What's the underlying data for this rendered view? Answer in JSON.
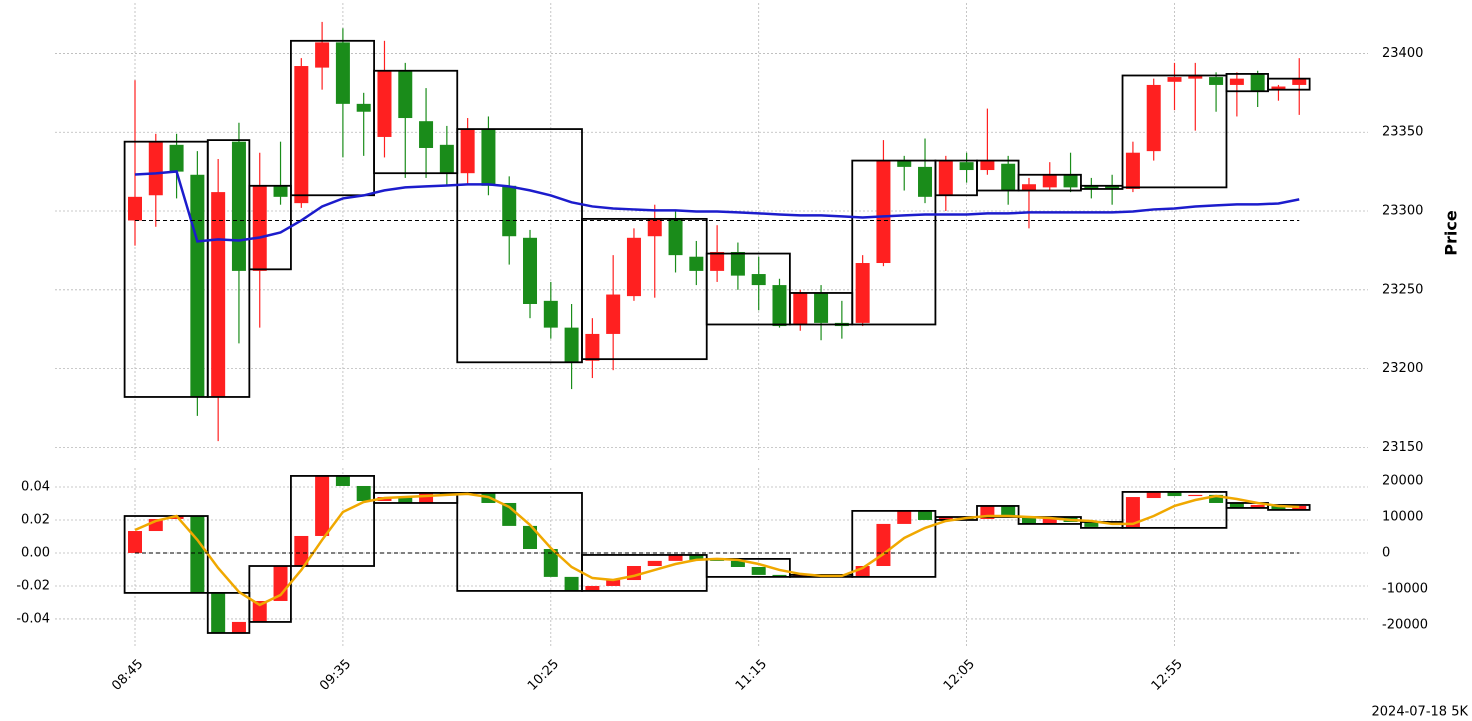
{
  "chart_data": [
    {
      "type": "candlestick",
      "y_label": "Price",
      "annotation": "2024-07-18 5K",
      "open": [
        23294,
        23310,
        23342,
        23323,
        23182,
        23344,
        23262,
        23316,
        23305,
        23391,
        23407,
        23368,
        23347,
        23389,
        23357,
        23342,
        23324,
        23352,
        23316,
        23283,
        23243,
        23226,
        23205,
        23222,
        23246,
        23284,
        23295,
        23271,
        23262,
        23274,
        23260,
        23253,
        23228,
        23248,
        23229,
        23229,
        23267,
        23332,
        23328,
        23310,
        23331,
        23326,
        23330,
        23313,
        23315,
        23323,
        23316,
        23316,
        23314,
        23338,
        23382,
        23384,
        23385,
        23380,
        23387,
        23377,
        23380
      ],
      "high": [
        23383,
        23349,
        23349,
        23338,
        23333,
        23356,
        23337,
        23344,
        23397,
        23420,
        23416,
        23375,
        23408,
        23394,
        23378,
        23354,
        23359,
        23360,
        23322,
        23288,
        23255,
        23241,
        23232,
        23272,
        23289,
        23304,
        23300,
        23281,
        23291,
        23280,
        23271,
        23257,
        23250,
        23253,
        23243,
        23272,
        23345,
        23335,
        23346,
        23335,
        23337,
        23365,
        23335,
        23321,
        23331,
        23337,
        23321,
        23323,
        23344,
        23384,
        23394,
        23394,
        23388,
        23388,
        23389,
        23380,
        23397
      ],
      "low": [
        23278,
        23290,
        23308,
        23170,
        23154,
        23216,
        23226,
        23304,
        23302,
        23377,
        23334,
        23335,
        23334,
        23321,
        23321,
        23316,
        23317,
        23310,
        23266,
        23232,
        23219,
        23187,
        23194,
        23199,
        23243,
        23245,
        23261,
        23253,
        23255,
        23250,
        23237,
        23226,
        23224,
        23218,
        23219,
        23227,
        23265,
        23313,
        23305,
        23300,
        23318,
        23323,
        23304,
        23289,
        23313,
        23312,
        23308,
        23304,
        23312,
        23332,
        23364,
        23351,
        23363,
        23360,
        23366,
        23370,
        23361
      ],
      "close": [
        23309,
        23344,
        23325,
        23182,
        23312,
        23262,
        23316,
        23309,
        23392,
        23407,
        23368,
        23363,
        23389,
        23359,
        23340,
        23324,
        23352,
        23316,
        23284,
        23241,
        23226,
        23204,
        23222,
        23247,
        23283,
        23295,
        23272,
        23262,
        23274,
        23259,
        23253,
        23227,
        23248,
        23229,
        23227,
        23267,
        23332,
        23328,
        23309,
        23332,
        23326,
        23332,
        23313,
        23317,
        23323,
        23315,
        23314,
        23314,
        23337,
        23380,
        23385,
        23386,
        23380,
        23384,
        23376,
        23379,
        23384
      ],
      "up_color": "#ff2020",
      "down_color": "#1a8c1a",
      "boxes": {
        "color": "#000000",
        "bars": [
          4,
          2,
          2,
          4,
          4,
          6,
          6,
          4,
          3,
          4,
          2,
          2,
          3,
          2,
          5,
          2,
          2
        ],
        "high": [
          23344,
          23345,
          23316,
          23408,
          23389,
          23352,
          23295,
          23273,
          23248,
          23332,
          23332,
          23332,
          23323,
          23316,
          23386,
          23387,
          23384
        ],
        "low": [
          23182,
          23182,
          23263,
          23310,
          23324,
          23204,
          23206,
          23228,
          23228,
          23228,
          23310,
          23313,
          23313,
          23314,
          23315,
          23376,
          23377
        ]
      },
      "lines": [
        {
          "color": "#1c1ccc",
          "values": [
            23323.2,
            23323.9,
            23325.1,
            23280.7,
            23282.0,
            23281.3,
            23283.2,
            23286.4,
            23294.0,
            23302.9,
            23308.0,
            23309.9,
            23313.1,
            23315.0,
            23315.6,
            23316.2,
            23316.9,
            23316.9,
            23315.6,
            23313.1,
            23309.9,
            23305.5,
            23302.9,
            23301.6,
            23301.0,
            23300.4,
            23300.4,
            23299.7,
            23299.7,
            23299.1,
            23298.5,
            23297.8,
            23297.2,
            23297.2,
            23296.6,
            23295.9,
            23296.6,
            23297.2,
            23297.8,
            23297.8,
            23297.8,
            23298.5,
            23298.5,
            23299.1,
            23299.1,
            23299.1,
            23299.1,
            23299.1,
            23299.7,
            23301.0,
            23301.6,
            23302.9,
            23303.6,
            23304.2,
            23304.2,
            23304.8,
            23307.4
          ]
        }
      ],
      "reference_line": 23294,
      "ylim": [
        23142,
        23432
      ],
      "yticks": [
        23150,
        23200,
        23250,
        23300,
        23350,
        23400
      ],
      "grid": true
    },
    {
      "type": "candlestick",
      "categories": [
        "08:45",
        null,
        null,
        null,
        null,
        null,
        null,
        null,
        null,
        null,
        "09:35",
        null,
        null,
        null,
        null,
        null,
        null,
        null,
        null,
        null,
        "10:25",
        null,
        null,
        null,
        null,
        null,
        null,
        null,
        null,
        null,
        "11:15",
        null,
        null,
        null,
        null,
        null,
        null,
        null,
        null,
        null,
        "12:05",
        null,
        null,
        null,
        null,
        null,
        null,
        null,
        null,
        null,
        "12:55",
        null,
        null,
        null,
        null,
        null,
        null
      ],
      "open": [
        0,
        0.0133,
        0.0206,
        0.0224,
        -0.0242,
        -0.0485,
        -0.0418,
        -0.0291,
        -0.0079,
        0.0103,
        0.0467,
        0.0406,
        0.0315,
        0.0339,
        0.0303,
        0.0364,
        0.0352,
        0.0364,
        0.0303,
        0.0164,
        0.0024,
        -0.0145,
        -0.023,
        -0.02,
        -0.0164,
        -0.0079,
        -0.0048,
        -0.0012,
        -0.0042,
        -0.0048,
        -0.0085,
        -0.0133,
        -0.0145,
        -0.0133,
        -0.014,
        -0.0145,
        -0.0079,
        0.0176,
        0.0255,
        0.02,
        0.0218,
        0.0206,
        0.0285,
        0.0218,
        0.0176,
        0.0218,
        0.0188,
        0.0158,
        0.0152,
        0.0333,
        0.037,
        0.0345,
        0.0352,
        0.0303,
        0.0273,
        0.0291,
        0.0261
      ],
      "close": [
        0.0133,
        0.0206,
        0.0224,
        -0.0242,
        -0.0485,
        -0.0418,
        -0.0291,
        -0.0079,
        0.0103,
        0.0467,
        0.0406,
        0.0315,
        0.0339,
        0.0303,
        0.0364,
        0.0352,
        0.0364,
        0.0303,
        0.0164,
        0.0024,
        -0.0145,
        -0.023,
        -0.02,
        -0.0164,
        -0.0079,
        -0.0048,
        -0.0012,
        -0.0042,
        -0.0048,
        -0.0085,
        -0.0133,
        -0.0145,
        -0.0133,
        -0.014,
        -0.0145,
        -0.0079,
        0.0176,
        0.0255,
        0.02,
        0.0218,
        0.0206,
        0.0285,
        0.0218,
        0.0176,
        0.0218,
        0.0188,
        0.0158,
        0.0152,
        0.0339,
        0.037,
        0.0345,
        0.0352,
        0.0303,
        0.0273,
        0.0291,
        0.0261,
        0.0285
      ],
      "up_color": "#ff2020",
      "down_color": "#1a8c1a",
      "boxes": {
        "color": "#000000",
        "bars": [
          4,
          2,
          2,
          4,
          4,
          6,
          6,
          4,
          3,
          4,
          2,
          2,
          3,
          2,
          5,
          2,
          2
        ],
        "high": [
          0.0224,
          -0.0242,
          -0.0079,
          0.0467,
          0.0364,
          0.0364,
          -0.0012,
          -0.0036,
          -0.0133,
          0.0255,
          0.0218,
          0.0285,
          0.0218,
          0.0188,
          0.037,
          0.0303,
          0.0291
        ],
        "low": [
          -0.0242,
          -0.0485,
          -0.0418,
          -0.0079,
          0.0303,
          -0.023,
          -0.023,
          -0.0145,
          -0.0145,
          -0.0145,
          0.02,
          0.0218,
          0.0176,
          0.0152,
          0.0152,
          0.0273,
          0.0261
        ]
      },
      "lines": [
        {
          "color": "#f0a800",
          "values": [
            0.0139,
            0.0194,
            0.0224,
            0.0079,
            -0.0091,
            -0.0236,
            -0.0315,
            -0.0255,
            -0.0103,
            0.0079,
            0.0248,
            0.0309,
            0.0333,
            0.0339,
            0.0345,
            0.0352,
            0.0358,
            0.0339,
            0.0279,
            0.017,
            0.003,
            -0.0085,
            -0.0152,
            -0.0164,
            -0.0139,
            -0.0103,
            -0.0067,
            -0.0042,
            -0.0036,
            -0.0042,
            -0.0067,
            -0.0103,
            -0.0127,
            -0.0139,
            -0.0139,
            -0.0091,
            -0.0006,
            0.0091,
            0.0152,
            0.0194,
            0.0212,
            0.0224,
            0.0224,
            0.0218,
            0.0212,
            0.02,
            0.0194,
            0.0176,
            0.0176,
            0.0224,
            0.0285,
            0.0321,
            0.0345,
            0.0327,
            0.0303,
            0.0285,
            0.0279
          ]
        }
      ],
      "reference_line": 0,
      "ylim": [
        -0.0576,
        0.0515
      ],
      "yticks": [
        -0.04,
        -0.02,
        {
          "value": 0,
          "label": "0.00"
        },
        0.02,
        0.04
      ],
      "y2lim": [
        -26400,
        23600
      ],
      "y2ticks": [
        -20000,
        -10000,
        0,
        10000,
        20000
      ],
      "grid": true
    }
  ]
}
